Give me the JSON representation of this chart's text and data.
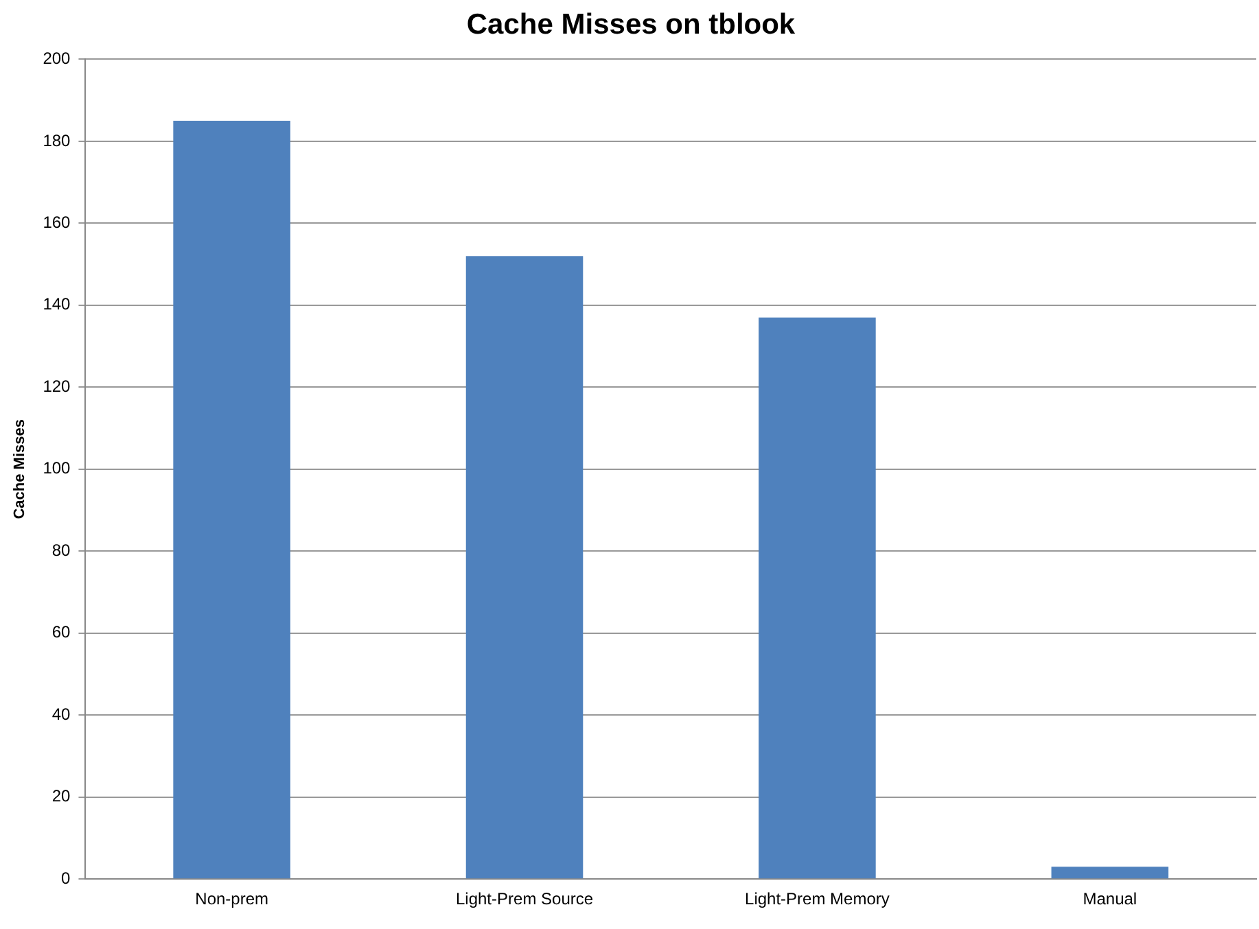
{
  "chart_data": {
    "type": "bar",
    "title": "Cache Misses on tblook",
    "ylabel": "Cache Misses",
    "categories": [
      "Non-prem",
      "Light-Prem Source",
      "Light-Prem Memory",
      "Manual"
    ],
    "values": [
      185,
      152,
      137,
      3
    ],
    "color": "#4f81bd",
    "ylim": [
      0,
      200
    ],
    "yticks": [
      0,
      20,
      40,
      60,
      80,
      100,
      120,
      140,
      160,
      180,
      200
    ],
    "grid": "y",
    "legend": false
  }
}
